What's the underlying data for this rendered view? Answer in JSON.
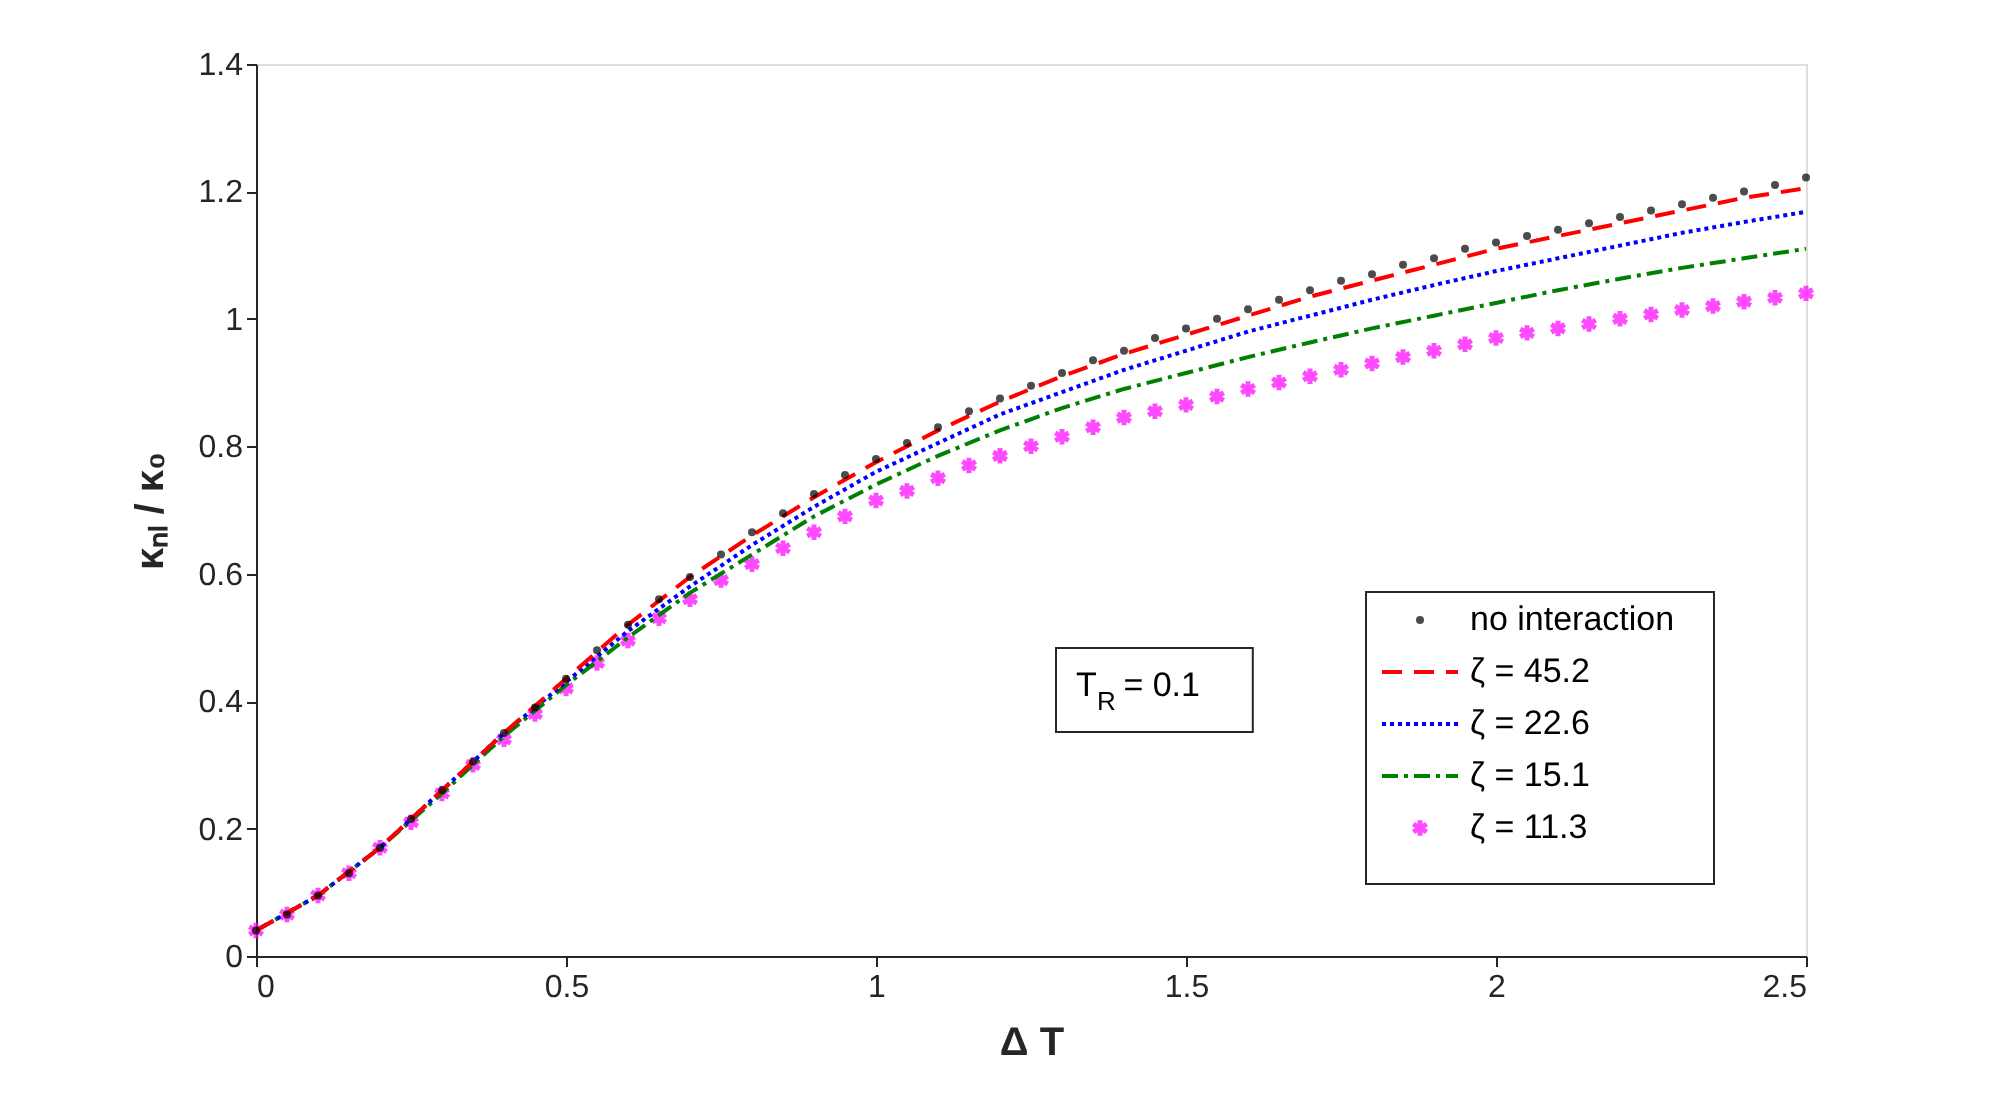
{
  "chart_data": {
    "type": "line",
    "xlabel": "Δ T",
    "ylabel": "κₙₗ / κ₀",
    "xlim": [
      0,
      2.5
    ],
    "xticks": [
      0,
      0.5,
      1,
      1.5,
      2,
      2.5
    ],
    "ylim": [
      0,
      1.4
    ],
    "yticks": [
      0,
      0.2,
      0.4,
      0.6,
      0.8,
      1,
      1.2,
      1.4
    ],
    "grid": false,
    "legend": "bottom right",
    "annotations": [
      "T$_{R}$ = 0.1"
    ],
    "series": [
      {
        "name": "no interaction",
        "type": "scatter",
        "marker": "circle",
        "color": "#000000",
        "x": [
          0,
          0.05,
          0.1,
          0.15,
          0.2,
          0.25,
          0.3,
          0.35,
          0.4,
          0.45,
          0.5,
          0.55,
          0.6,
          0.65,
          0.7,
          0.75,
          0.8,
          0.85,
          0.9,
          0.95,
          1,
          1.05,
          1.1,
          1.15,
          1.2,
          1.25,
          1.3,
          1.35,
          1.4,
          1.45,
          1.5,
          1.55,
          1.6,
          1.65,
          1.7,
          1.75,
          1.8,
          1.85,
          1.9,
          1.95,
          2,
          2.05,
          2.1,
          2.15,
          2.2,
          2.25,
          2.3,
          2.35,
          2.4,
          2.45,
          2.5
        ],
        "values": [
          0.04,
          0.065,
          0.095,
          0.13,
          0.17,
          0.215,
          0.26,
          0.305,
          0.35,
          0.39,
          0.435,
          0.48,
          0.52,
          0.56,
          0.595,
          0.63,
          0.665,
          0.695,
          0.725,
          0.755,
          0.78,
          0.805,
          0.83,
          0.855,
          0.875,
          0.895,
          0.915,
          0.935,
          0.95,
          0.97,
          0.985,
          1.0,
          1.015,
          1.03,
          1.045,
          1.06,
          1.07,
          1.085,
          1.095,
          1.11,
          1.12,
          1.13,
          1.14,
          1.15,
          1.16,
          1.17,
          1.18,
          1.19,
          1.2,
          1.21,
          1.222
        ]
      },
      {
        "name": "ζ = 45.2",
        "line_style": "dashed",
        "color": "#ff0000",
        "x": [
          0,
          0.1,
          0.2,
          0.3,
          0.4,
          0.5,
          0.6,
          0.7,
          0.8,
          0.9,
          1,
          1.1,
          1.2,
          1.3,
          1.4,
          1.5,
          1.6,
          1.7,
          1.8,
          1.9,
          2,
          2.1,
          2.2,
          2.3,
          2.4,
          2.5
        ],
        "values": [
          0.04,
          0.095,
          0.17,
          0.26,
          0.35,
          0.435,
          0.52,
          0.595,
          0.66,
          0.72,
          0.775,
          0.825,
          0.87,
          0.91,
          0.945,
          0.975,
          1.005,
          1.035,
          1.06,
          1.085,
          1.11,
          1.13,
          1.15,
          1.17,
          1.19,
          1.205
        ]
      },
      {
        "name": "ζ = 22.6",
        "line_style": "dotted",
        "color": "#0000ff",
        "x": [
          0,
          0.1,
          0.2,
          0.3,
          0.4,
          0.5,
          0.6,
          0.7,
          0.8,
          0.9,
          1,
          1.1,
          1.2,
          1.3,
          1.4,
          1.5,
          1.6,
          1.7,
          1.8,
          1.9,
          2,
          2.1,
          2.2,
          2.3,
          2.4,
          2.5
        ],
        "values": [
          0.04,
          0.095,
          0.17,
          0.26,
          0.35,
          0.43,
          0.51,
          0.58,
          0.645,
          0.705,
          0.76,
          0.805,
          0.85,
          0.885,
          0.92,
          0.95,
          0.98,
          1.005,
          1.03,
          1.053,
          1.075,
          1.095,
          1.115,
          1.135,
          1.152,
          1.168
        ]
      },
      {
        "name": "ζ = 15.1",
        "line_style": "dashdot",
        "color": "#008000",
        "x": [
          0,
          0.1,
          0.2,
          0.3,
          0.4,
          0.5,
          0.6,
          0.7,
          0.8,
          0.9,
          1,
          1.1,
          1.2,
          1.3,
          1.4,
          1.5,
          1.6,
          1.7,
          1.8,
          1.9,
          2,
          2.1,
          2.2,
          2.3,
          2.4,
          2.5
        ],
        "values": [
          0.04,
          0.095,
          0.17,
          0.255,
          0.345,
          0.425,
          0.5,
          0.57,
          0.63,
          0.69,
          0.74,
          0.785,
          0.825,
          0.86,
          0.89,
          0.915,
          0.94,
          0.963,
          0.985,
          1.005,
          1.025,
          1.045,
          1.063,
          1.08,
          1.095,
          1.11
        ]
      },
      {
        "name": "ζ = 11.3",
        "type": "scatter",
        "marker": "cross",
        "color": "#ff00ff",
        "x": [
          0,
          0.05,
          0.1,
          0.15,
          0.2,
          0.25,
          0.3,
          0.35,
          0.4,
          0.45,
          0.5,
          0.55,
          0.6,
          0.65,
          0.7,
          0.75,
          0.8,
          0.85,
          0.9,
          0.95,
          1,
          1.05,
          1.1,
          1.15,
          1.2,
          1.25,
          1.3,
          1.35,
          1.4,
          1.45,
          1.5,
          1.55,
          1.6,
          1.65,
          1.7,
          1.75,
          1.8,
          1.85,
          1.9,
          1.95,
          2,
          2.05,
          2.1,
          2.15,
          2.2,
          2.25,
          2.3,
          2.35,
          2.4,
          2.45,
          2.5
        ],
        "values": [
          0.04,
          0.065,
          0.095,
          0.13,
          0.17,
          0.21,
          0.255,
          0.3,
          0.34,
          0.38,
          0.42,
          0.46,
          0.495,
          0.53,
          0.56,
          0.59,
          0.615,
          0.64,
          0.665,
          0.69,
          0.715,
          0.73,
          0.75,
          0.77,
          0.785,
          0.8,
          0.815,
          0.83,
          0.845,
          0.855,
          0.865,
          0.878,
          0.89,
          0.9,
          0.91,
          0.92,
          0.93,
          0.94,
          0.95,
          0.96,
          0.97,
          0.978,
          0.985,
          0.992,
          1.0,
          1.007,
          1.014,
          1.02,
          1.027,
          1.033,
          1.04
        ]
      }
    ]
  }
}
